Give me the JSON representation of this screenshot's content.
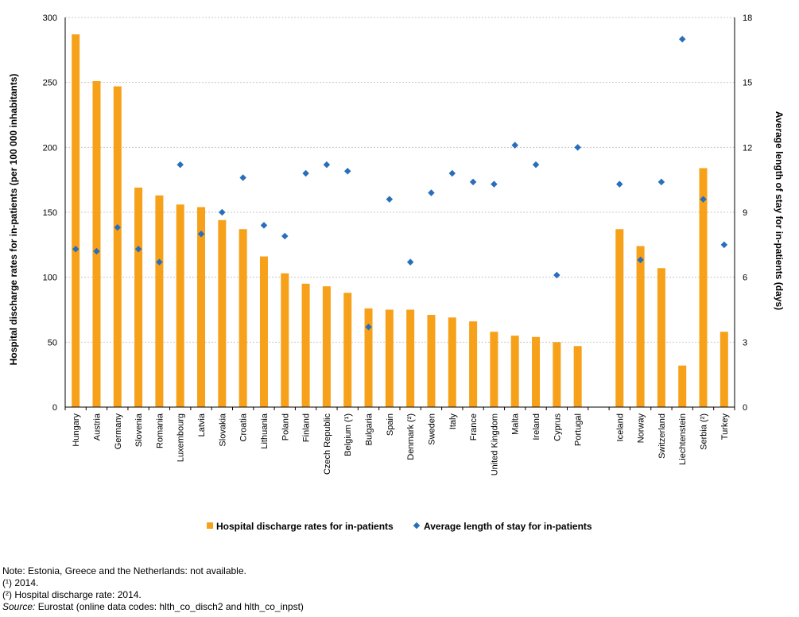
{
  "chart_data": {
    "type": "bar",
    "categories": [
      "Hungary",
      "Austria",
      "Germany",
      "Slovenia",
      "Romania",
      "Luxembourg",
      "Latvia",
      "Slovakia",
      "Croatia",
      "Lithuania",
      "Poland",
      "Finland",
      "Czech Republic",
      "Belgium (¹)",
      "Bulgaria",
      "Spain",
      "Denmark (²)",
      "Sweden",
      "Italy",
      "France",
      "United Kingdom",
      "Malta",
      "Ireland",
      "Cyprus",
      "Portugal",
      "",
      "Iceland",
      "Norway",
      "Switzerland",
      "Liechtenstein",
      "Serbia (²)",
      "Turkey"
    ],
    "series": [
      {
        "name": "Hospital discharge rates for in-patients",
        "type": "bar",
        "axis": "left",
        "color": "#f7a11a",
        "values": [
          287,
          251,
          247,
          169,
          163,
          156,
          154,
          144,
          137,
          116,
          103,
          95,
          93,
          88,
          76,
          75,
          75,
          71,
          69,
          66,
          58,
          55,
          54,
          50,
          47,
          null,
          137,
          124,
          107,
          32,
          184,
          58
        ]
      },
      {
        "name": "Average length of stay for in-patients",
        "type": "scatter",
        "axis": "right",
        "color": "#2a6ebb",
        "values": [
          7.3,
          7.2,
          8.3,
          7.3,
          6.7,
          11.2,
          8.0,
          9.0,
          10.6,
          8.4,
          7.9,
          10.8,
          11.2,
          10.9,
          3.7,
          9.6,
          6.7,
          9.9,
          10.8,
          10.4,
          10.3,
          12.1,
          11.2,
          6.1,
          12.0,
          null,
          10.3,
          6.8,
          10.4,
          17.0,
          9.6,
          7.5
        ]
      }
    ],
    "ylabel": "Hospital discharge rates for in-patients (per 100 000 inhabitants)",
    "y2label": "Average length of stay for in-patients (days)",
    "ylim": [
      0,
      300
    ],
    "y2lim": [
      0,
      18
    ],
    "yticks": [
      0,
      50,
      100,
      150,
      200,
      250,
      300
    ],
    "y2ticks": [
      0,
      3,
      6,
      9,
      12,
      15,
      18
    ],
    "grid": true,
    "legend_position": "bottom"
  },
  "notes": {
    "line1": "Note: Estonia, Greece and the Netherlands: not available.",
    "line2": "(¹) 2014.",
    "line3": "(²) Hospital discharge rate: 2014.",
    "source_label": "Source:",
    "source_text": " Eurostat (online data codes: hlth_co_disch2 and hlth_co_inpst)"
  }
}
